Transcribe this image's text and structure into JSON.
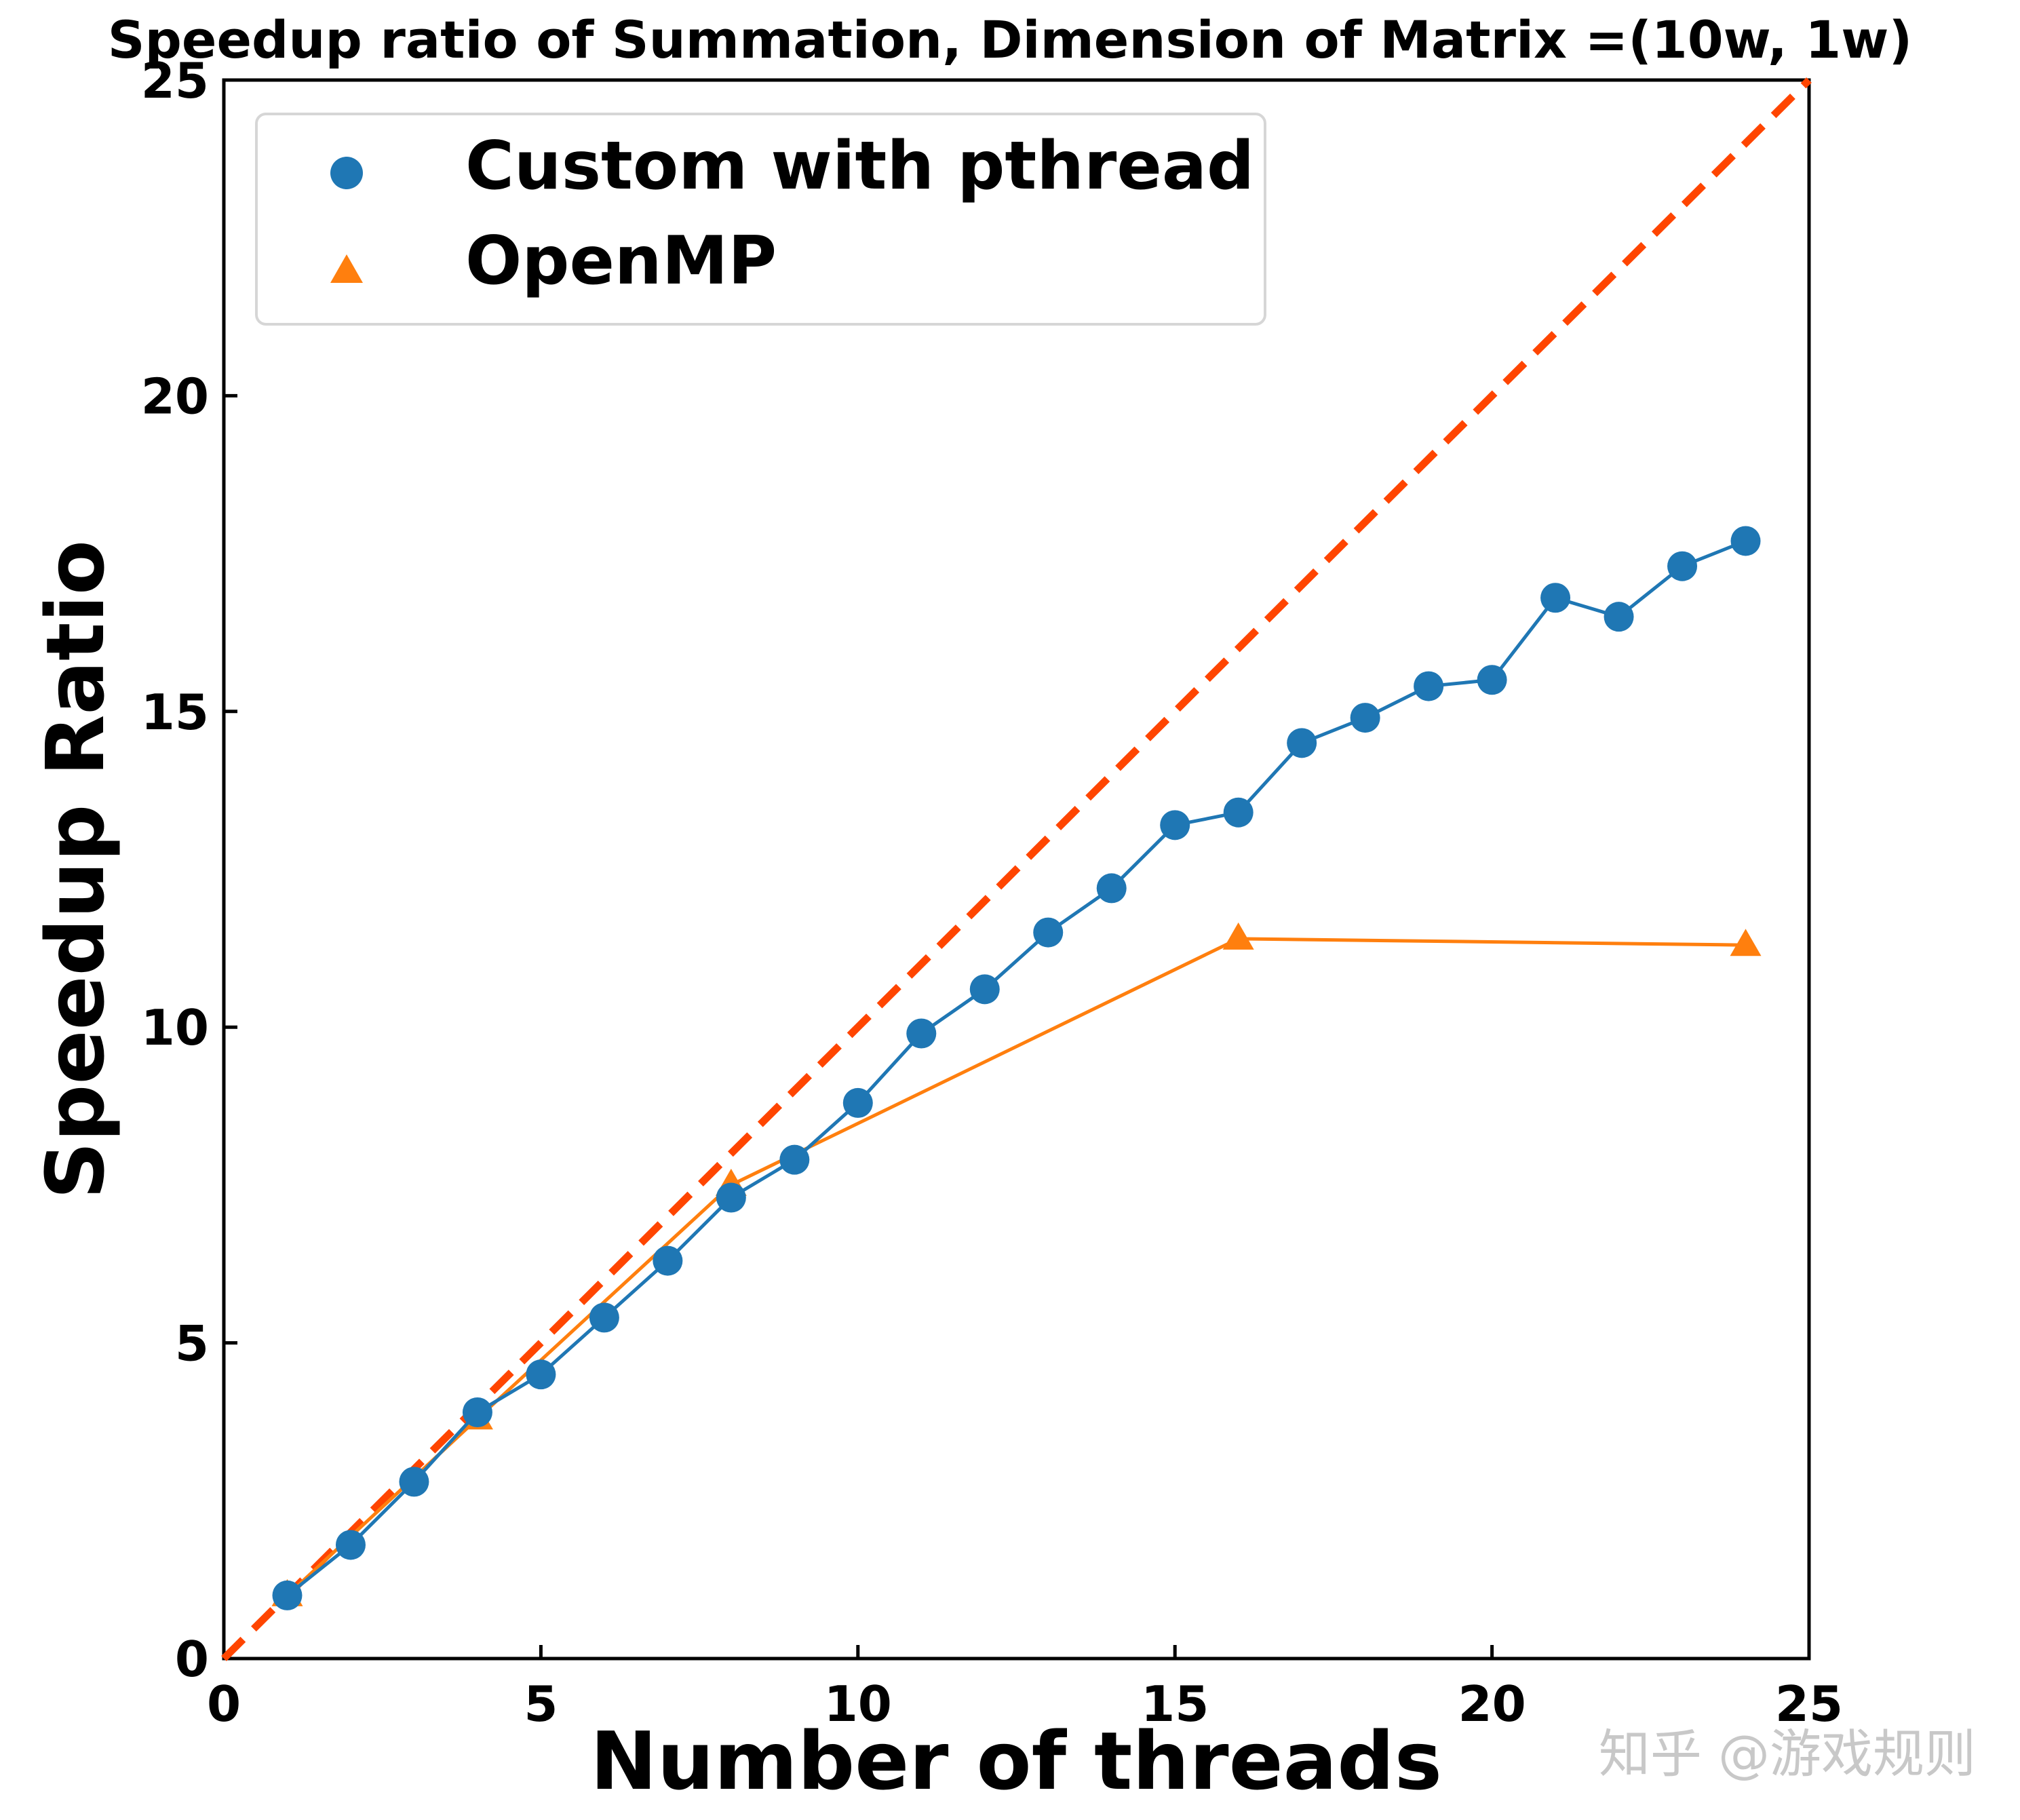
{
  "chart_data": {
    "type": "line",
    "title": "Speedup ratio of Summation, Dimension of Matrix =(10w, 1w)",
    "xlabel": "Number of threads",
    "ylabel": "Speedup Ratio",
    "xlim": [
      0,
      25
    ],
    "ylim": [
      0,
      25
    ],
    "xticks": [
      "0",
      "5",
      "10",
      "15",
      "20",
      "25"
    ],
    "yticks": [
      "0",
      "5",
      "10",
      "15",
      "20",
      "25"
    ],
    "grid": false,
    "legend": "top-left",
    "series": [
      {
        "name": "Custom with pthread",
        "marker": "circle",
        "color": "#1f77b4",
        "x": [
          1,
          2,
          3,
          4,
          5,
          6,
          7,
          8,
          9,
          10,
          11,
          12,
          13,
          14,
          15,
          16,
          17,
          18,
          19,
          20,
          21,
          22,
          23,
          24
        ],
        "y": [
          1.0,
          1.8,
          2.8,
          3.9,
          4.5,
          5.4,
          6.3,
          7.3,
          7.9,
          8.8,
          9.9,
          10.6,
          11.5,
          12.2,
          13.2,
          13.4,
          14.5,
          14.9,
          15.4,
          15.5,
          16.8,
          16.5,
          17.3,
          17.7
        ]
      },
      {
        "name": "OpenMP",
        "marker": "triangle",
        "color": "#ff7f0e",
        "x": [
          1,
          4,
          8,
          16,
          24
        ],
        "y": [
          1.0,
          3.8,
          7.5,
          11.4,
          11.3
        ]
      }
    ],
    "reference_line": {
      "style": "dashed",
      "color": "#ff4500",
      "x": [
        0,
        25
      ],
      "y": [
        0,
        25
      ]
    }
  },
  "watermark": "知乎 @游戏规则"
}
